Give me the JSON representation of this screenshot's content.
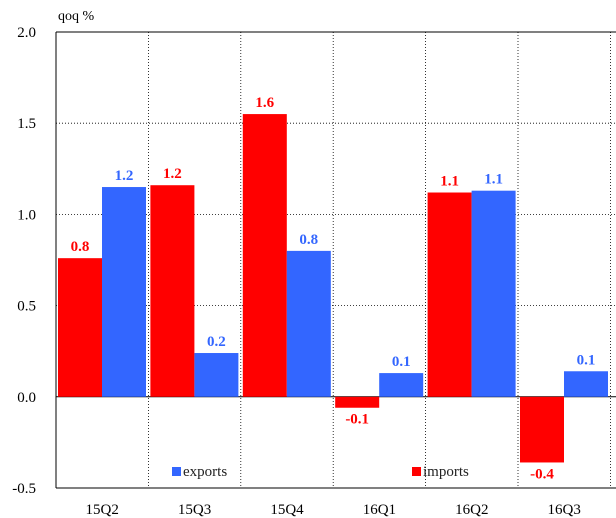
{
  "chart_data": {
    "type": "bar",
    "unit_label": "qoq %",
    "categories": [
      "15Q2",
      "15Q3",
      "15Q4",
      "16Q1",
      "16Q2",
      "16Q3"
    ],
    "series": [
      {
        "name": "imports",
        "color": "#ff0000",
        "values": [
          0.76,
          1.16,
          1.55,
          -0.06,
          1.12,
          -0.36
        ],
        "labels": [
          "0.8",
          "1.2",
          "1.6",
          "-0.1",
          "1.1",
          "-0.4"
        ]
      },
      {
        "name": "exports",
        "color": "#3366ff",
        "values": [
          1.15,
          0.24,
          0.8,
          0.13,
          1.13,
          0.14
        ],
        "labels": [
          "1.2",
          "0.2",
          "0.8",
          "0.1",
          "1.1",
          "0.1"
        ]
      }
    ],
    "ylim": [
      -0.5,
      2.0
    ],
    "yticks": [
      "2.0",
      "1.5",
      "1.0",
      "0.5",
      "0.0",
      "-0.5"
    ],
    "grid": true,
    "legend_position": "bottom",
    "legend_order": [
      "exports",
      "imports"
    ]
  }
}
